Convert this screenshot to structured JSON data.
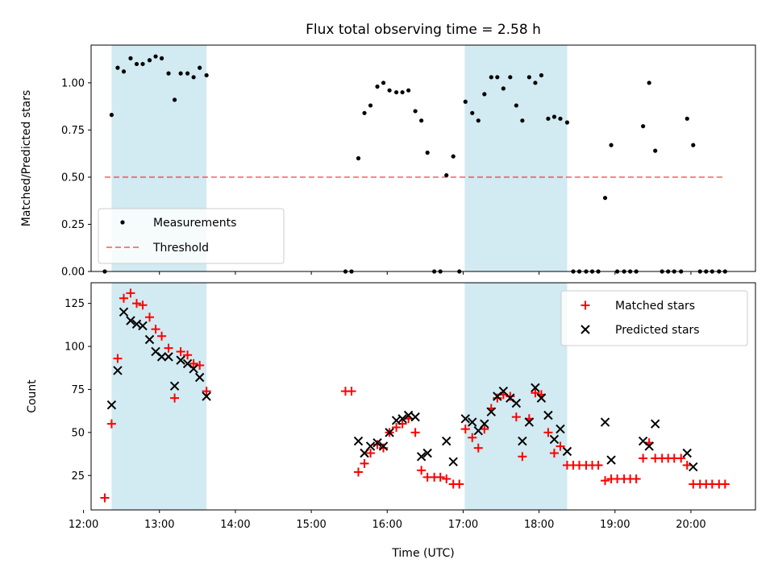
{
  "chart_data": [
    {
      "type": "scatter",
      "title": "Flux total observing time = 2.58 h",
      "ylabel": "Matched/Predicted stars",
      "xlabel": "",
      "xlim": [
        12.1,
        20.85
      ],
      "ylim": [
        0,
        1.2
      ],
      "y_ticks": [
        "0.00",
        "0.25",
        "0.50",
        "0.75",
        "1.00"
      ],
      "shaded_intervals": [
        [
          12.37,
          13.62
        ],
        [
          17.02,
          18.37
        ]
      ],
      "colors": {
        "shade": "#add8e6",
        "measurements": "#000000",
        "threshold": "#ff0000"
      },
      "legend": {
        "position": "lower-left",
        "entries": [
          "Measurements",
          "Threshold"
        ]
      },
      "threshold": {
        "name": "Threshold",
        "value": 0.5,
        "x_range": [
          12.28,
          20.45
        ]
      },
      "series": [
        {
          "name": "Measurements",
          "points": [
            [
              12.28,
              0.0
            ],
            [
              12.37,
              0.83
            ],
            [
              12.45,
              1.08
            ],
            [
              12.53,
              1.06
            ],
            [
              12.62,
              1.13
            ],
            [
              12.7,
              1.1
            ],
            [
              12.78,
              1.1
            ],
            [
              12.87,
              1.12
            ],
            [
              12.95,
              1.14
            ],
            [
              13.03,
              1.13
            ],
            [
              13.12,
              1.05
            ],
            [
              13.2,
              0.91
            ],
            [
              13.28,
              1.05
            ],
            [
              13.37,
              1.05
            ],
            [
              13.45,
              1.03
            ],
            [
              13.53,
              1.08
            ],
            [
              13.62,
              1.04
            ],
            [
              15.45,
              0.0
            ],
            [
              15.53,
              0.0
            ],
            [
              15.62,
              0.6
            ],
            [
              15.7,
              0.84
            ],
            [
              15.78,
              0.88
            ],
            [
              15.87,
              0.98
            ],
            [
              15.95,
              1.0
            ],
            [
              16.03,
              0.96
            ],
            [
              16.12,
              0.95
            ],
            [
              16.2,
              0.95
            ],
            [
              16.28,
              0.96
            ],
            [
              16.37,
              0.85
            ],
            [
              16.45,
              0.8
            ],
            [
              16.53,
              0.63
            ],
            [
              16.62,
              0.0
            ],
            [
              16.7,
              0.0
            ],
            [
              16.78,
              0.51
            ],
            [
              16.87,
              0.61
            ],
            [
              16.95,
              0.0
            ],
            [
              17.03,
              0.9
            ],
            [
              17.12,
              0.84
            ],
            [
              17.2,
              0.8
            ],
            [
              17.28,
              0.94
            ],
            [
              17.37,
              1.03
            ],
            [
              17.45,
              1.03
            ],
            [
              17.53,
              0.97
            ],
            [
              17.62,
              1.03
            ],
            [
              17.7,
              0.88
            ],
            [
              17.78,
              0.8
            ],
            [
              17.87,
              1.03
            ],
            [
              17.95,
              1.0
            ],
            [
              18.03,
              1.04
            ],
            [
              18.12,
              0.81
            ],
            [
              18.2,
              0.82
            ],
            [
              18.28,
              0.81
            ],
            [
              18.37,
              0.79
            ],
            [
              18.45,
              0.0
            ],
            [
              18.53,
              0.0
            ],
            [
              18.62,
              0.0
            ],
            [
              18.7,
              0.0
            ],
            [
              18.78,
              0.0
            ],
            [
              18.87,
              0.39
            ],
            [
              18.95,
              0.67
            ],
            [
              19.03,
              0.0
            ],
            [
              19.12,
              0.0
            ],
            [
              19.2,
              0.0
            ],
            [
              19.28,
              0.0
            ],
            [
              19.37,
              0.77
            ],
            [
              19.45,
              1.0
            ],
            [
              19.53,
              0.64
            ],
            [
              19.62,
              0.0
            ],
            [
              19.7,
              0.0
            ],
            [
              19.78,
              0.0
            ],
            [
              19.87,
              0.0
            ],
            [
              19.95,
              0.81
            ],
            [
              20.03,
              0.67
            ],
            [
              20.12,
              0.0
            ],
            [
              20.2,
              0.0
            ],
            [
              20.28,
              0.0
            ],
            [
              20.37,
              0.0
            ],
            [
              20.45,
              0.0
            ]
          ]
        }
      ]
    },
    {
      "type": "scatter",
      "title": "",
      "ylabel": "Count",
      "xlabel": "Time (UTC)",
      "xlim": [
        12.1,
        20.85
      ],
      "ylim": [
        5,
        137
      ],
      "y_ticks": [
        "25",
        "50",
        "75",
        "100",
        "125"
      ],
      "x_ticks": [
        "12:00",
        "13:00",
        "14:00",
        "15:00",
        "16:00",
        "17:00",
        "18:00",
        "19:00",
        "20:00"
      ],
      "shaded_intervals": [
        [
          12.37,
          13.62
        ],
        [
          17.02,
          18.37
        ]
      ],
      "colors": {
        "shade": "#add8e6",
        "matched": "#ff0000",
        "predicted": "#000000"
      },
      "legend": {
        "position": "upper-right",
        "entries": [
          "Matched stars",
          "Predicted stars"
        ]
      },
      "series": [
        {
          "name": "Matched stars",
          "marker": "plus",
          "points": [
            [
              12.28,
              12
            ],
            [
              12.37,
              55
            ],
            [
              12.45,
              93
            ],
            [
              12.53,
              128
            ],
            [
              12.62,
              131
            ],
            [
              12.7,
              125
            ],
            [
              12.78,
              124
            ],
            [
              12.87,
              117
            ],
            [
              12.95,
              110
            ],
            [
              13.03,
              106
            ],
            [
              13.12,
              99
            ],
            [
              13.2,
              70
            ],
            [
              13.28,
              97
            ],
            [
              13.37,
              95
            ],
            [
              13.45,
              90
            ],
            [
              13.53,
              89
            ],
            [
              13.62,
              74
            ],
            [
              15.45,
              74
            ],
            [
              15.53,
              74
            ],
            [
              15.62,
              27
            ],
            [
              15.7,
              32
            ],
            [
              15.78,
              38
            ],
            [
              15.87,
              43
            ],
            [
              15.95,
              41
            ],
            [
              16.03,
              50
            ],
            [
              16.12,
              53
            ],
            [
              16.2,
              55
            ],
            [
              16.28,
              58
            ],
            [
              16.37,
              50
            ],
            [
              16.45,
              28
            ],
            [
              16.53,
              24
            ],
            [
              16.62,
              24
            ],
            [
              16.7,
              24
            ],
            [
              16.78,
              23
            ],
            [
              16.87,
              20
            ],
            [
              16.95,
              20
            ],
            [
              17.03,
              52
            ],
            [
              17.12,
              47
            ],
            [
              17.2,
              41
            ],
            [
              17.28,
              52
            ],
            [
              17.37,
              64
            ],
            [
              17.45,
              70
            ],
            [
              17.53,
              72
            ],
            [
              17.62,
              71
            ],
            [
              17.7,
              59
            ],
            [
              17.78,
              36
            ],
            [
              17.87,
              58
            ],
            [
              17.95,
              73
            ],
            [
              18.03,
              72
            ],
            [
              18.12,
              50
            ],
            [
              18.2,
              38
            ],
            [
              18.28,
              42
            ],
            [
              18.37,
              31
            ],
            [
              18.45,
              31
            ],
            [
              18.53,
              31
            ],
            [
              18.62,
              31
            ],
            [
              18.7,
              31
            ],
            [
              18.78,
              31
            ],
            [
              18.87,
              22
            ],
            [
              18.95,
              23
            ],
            [
              19.03,
              23
            ],
            [
              19.12,
              23
            ],
            [
              19.2,
              23
            ],
            [
              19.28,
              23
            ],
            [
              19.37,
              35
            ],
            [
              19.45,
              44
            ],
            [
              19.53,
              35
            ],
            [
              19.62,
              35
            ],
            [
              19.7,
              35
            ],
            [
              19.78,
              35
            ],
            [
              19.87,
              35
            ],
            [
              19.95,
              31
            ],
            [
              20.03,
              20
            ],
            [
              20.12,
              20
            ],
            [
              20.2,
              20
            ],
            [
              20.28,
              20
            ],
            [
              20.37,
              20
            ],
            [
              20.45,
              20
            ]
          ]
        },
        {
          "name": "Predicted stars",
          "marker": "x",
          "points": [
            [
              12.37,
              66
            ],
            [
              12.45,
              86
            ],
            [
              12.53,
              120
            ],
            [
              12.62,
              115
            ],
            [
              12.7,
              113
            ],
            [
              12.78,
              112
            ],
            [
              12.87,
              104
            ],
            [
              12.95,
              97
            ],
            [
              13.03,
              94
            ],
            [
              13.12,
              94
            ],
            [
              13.2,
              77
            ],
            [
              13.28,
              92
            ],
            [
              13.37,
              90
            ],
            [
              13.45,
              87
            ],
            [
              13.53,
              82
            ],
            [
              13.62,
              71
            ],
            [
              15.62,
              45
            ],
            [
              15.7,
              38
            ],
            [
              15.78,
              42
            ],
            [
              15.87,
              44
            ],
            [
              15.95,
              42
            ],
            [
              16.03,
              50
            ],
            [
              16.12,
              57
            ],
            [
              16.2,
              58
            ],
            [
              16.28,
              60
            ],
            [
              16.37,
              59
            ],
            [
              16.45,
              36
            ],
            [
              16.53,
              38
            ],
            [
              16.78,
              45
            ],
            [
              16.87,
              33
            ],
            [
              17.03,
              58
            ],
            [
              17.12,
              56
            ],
            [
              17.2,
              51
            ],
            [
              17.28,
              55
            ],
            [
              17.37,
              62
            ],
            [
              17.45,
              71
            ],
            [
              17.53,
              74
            ],
            [
              17.62,
              70
            ],
            [
              17.7,
              67
            ],
            [
              17.78,
              45
            ],
            [
              17.87,
              56
            ],
            [
              17.95,
              76
            ],
            [
              18.03,
              70
            ],
            [
              18.12,
              60
            ],
            [
              18.2,
              46
            ],
            [
              18.28,
              52
            ],
            [
              18.37,
              39
            ],
            [
              18.87,
              56
            ],
            [
              18.95,
              34
            ],
            [
              19.37,
              45
            ],
            [
              19.45,
              42
            ],
            [
              19.53,
              55
            ],
            [
              19.95,
              38
            ],
            [
              20.03,
              30
            ]
          ]
        }
      ]
    }
  ]
}
